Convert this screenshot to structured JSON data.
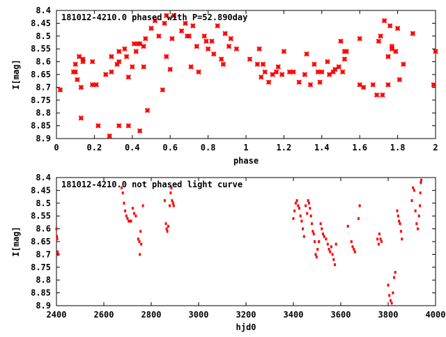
{
  "chart_data": [
    {
      "type": "scatter",
      "title": "181012-4210.0 phased with P=52.890day",
      "xlabel": "phase",
      "ylabel": "I[mag]",
      "xlim": [
        0,
        2
      ],
      "ylim": [
        8.4,
        8.9
      ],
      "y_inverted": true,
      "x_ticks": [
        0,
        0.2,
        0.4,
        0.6,
        0.8,
        1,
        1.2,
        1.4,
        1.6,
        1.8,
        2
      ],
      "x_tick_labels": [
        "0",
        "0.2",
        "0.4",
        "0.6",
        "0.8",
        "1",
        "1.2",
        "1.4",
        "1.6",
        "1.8",
        "2"
      ],
      "y_ticks": [
        8.4,
        8.45,
        8.5,
        8.55,
        8.6,
        8.65,
        8.7,
        8.75,
        8.8,
        8.85,
        8.9
      ],
      "y_tick_labels": [
        "8.4",
        "8.45",
        "8.5",
        "8.55",
        "8.6",
        "8.65",
        "8.7",
        "8.75",
        "8.8",
        "8.85",
        "8.9"
      ],
      "marker_color": "#ff0000",
      "marker": "cross",
      "points": [
        [
          0.02,
          8.71
        ],
        [
          0.09,
          8.64
        ],
        [
          0.1,
          8.64
        ],
        [
          0.1,
          8.61
        ],
        [
          0.11,
          8.67
        ],
        [
          0.12,
          8.58
        ],
        [
          0.13,
          8.7
        ],
        [
          0.13,
          8.82
        ],
        [
          0.14,
          8.6
        ],
        [
          0.14,
          8.59
        ],
        [
          0.19,
          8.69
        ],
        [
          0.19,
          8.6
        ],
        [
          0.21,
          8.69
        ],
        [
          0.22,
          8.85
        ],
        [
          0.26,
          8.65
        ],
        [
          0.28,
          8.89
        ],
        [
          0.29,
          8.64
        ],
        [
          0.29,
          8.58
        ],
        [
          0.32,
          8.61
        ],
        [
          0.33,
          8.6
        ],
        [
          0.33,
          8.56
        ],
        [
          0.33,
          8.85
        ],
        [
          0.36,
          8.55
        ],
        [
          0.37,
          8.58
        ],
        [
          0.38,
          8.66
        ],
        [
          0.38,
          8.85
        ],
        [
          0.4,
          8.62
        ],
        [
          0.41,
          8.53
        ],
        [
          0.42,
          8.56
        ],
        [
          0.43,
          8.53
        ],
        [
          0.44,
          8.53
        ],
        [
          0.44,
          8.87
        ],
        [
          0.46,
          8.54
        ],
        [
          0.46,
          8.62
        ],
        [
          0.47,
          8.51
        ],
        [
          0.48,
          8.79
        ],
        [
          0.5,
          8.47
        ],
        [
          0.52,
          8.44
        ],
        [
          0.54,
          8.5
        ],
        [
          0.56,
          8.71
        ],
        [
          0.57,
          8.45
        ],
        [
          0.58,
          8.42
        ],
        [
          0.58,
          8.58
        ],
        [
          0.6,
          8.63
        ],
        [
          0.61,
          8.51
        ],
        [
          0.62,
          8.42
        ],
        [
          0.66,
          8.48
        ],
        [
          0.68,
          8.45
        ],
        [
          0.69,
          8.5
        ],
        [
          0.7,
          8.5
        ],
        [
          0.71,
          8.62
        ],
        [
          0.72,
          8.46
        ],
        [
          0.74,
          8.54
        ],
        [
          0.75,
          8.64
        ],
        [
          0.78,
          8.5
        ],
        [
          0.79,
          8.52
        ],
        [
          0.8,
          8.55
        ],
        [
          0.82,
          8.52
        ],
        [
          0.83,
          8.57
        ],
        [
          0.85,
          8.46
        ],
        [
          0.87,
          8.59
        ],
        [
          0.88,
          8.61
        ],
        [
          0.89,
          8.49
        ],
        [
          0.91,
          8.54
        ],
        [
          0.92,
          8.51
        ],
        [
          0.95,
          8.55
        ],
        [
          1.02,
          8.59
        ],
        [
          1.06,
          8.61
        ],
        [
          1.07,
          8.55
        ],
        [
          1.08,
          8.66
        ],
        [
          1.09,
          8.61
        ],
        [
          1.1,
          8.64
        ],
        [
          1.12,
          8.68
        ],
        [
          1.14,
          8.65
        ],
        [
          1.16,
          8.64
        ],
        [
          1.17,
          8.62
        ],
        [
          1.19,
          8.65
        ],
        [
          1.2,
          8.56
        ],
        [
          1.23,
          8.64
        ],
        [
          1.25,
          8.64
        ],
        [
          1.28,
          8.68
        ],
        [
          1.31,
          8.65
        ],
        [
          1.32,
          8.57
        ],
        [
          1.34,
          8.69
        ],
        [
          1.36,
          8.61
        ],
        [
          1.38,
          8.64
        ],
        [
          1.39,
          8.68
        ],
        [
          1.4,
          8.64
        ],
        [
          1.43,
          8.6
        ],
        [
          1.44,
          8.65
        ],
        [
          1.46,
          8.64
        ],
        [
          1.47,
          8.63
        ],
        [
          1.49,
          8.62
        ],
        [
          1.5,
          8.52
        ],
        [
          1.51,
          8.64
        ],
        [
          1.52,
          8.59
        ],
        [
          1.52,
          8.56
        ],
        [
          1.53,
          8.56
        ],
        [
          1.6,
          8.51
        ],
        [
          1.6,
          8.69
        ],
        [
          1.62,
          8.7
        ],
        [
          1.67,
          8.69
        ],
        [
          1.69,
          8.73
        ],
        [
          1.7,
          8.52
        ],
        [
          1.71,
          8.5
        ],
        [
          1.72,
          8.73
        ],
        [
          1.73,
          8.44
        ],
        [
          1.75,
          8.69
        ],
        [
          1.75,
          8.58
        ],
        [
          1.76,
          8.46
        ],
        [
          1.77,
          8.55
        ],
        [
          1.77,
          8.54
        ],
        [
          1.79,
          8.56
        ],
        [
          1.8,
          8.47
        ],
        [
          1.81,
          8.67
        ],
        [
          1.83,
          8.61
        ],
        [
          1.88,
          8.49
        ],
        [
          1.99,
          8.69
        ],
        [
          2.0,
          8.56
        ]
      ]
    },
    {
      "type": "scatter",
      "title": "181012-4210.0 not phased light curve",
      "xlabel": "hjd0",
      "ylabel": "I[mag]",
      "xlim": [
        2400,
        4000
      ],
      "ylim": [
        8.4,
        8.9
      ],
      "y_inverted": true,
      "x_ticks": [
        2400,
        2600,
        2800,
        3000,
        3200,
        3400,
        3600,
        3800,
        4000
      ],
      "x_tick_labels": [
        "2400",
        "2600",
        "2800",
        "3000",
        "3200",
        "3400",
        "3600",
        "3800",
        "4000"
      ],
      "y_ticks": [
        8.4,
        8.45,
        8.5,
        8.55,
        8.6,
        8.65,
        8.7,
        8.75,
        8.8,
        8.85,
        8.9
      ],
      "y_tick_labels": [
        "8.4",
        "8.45",
        "8.5",
        "8.55",
        "8.6",
        "8.65",
        "8.7",
        "8.75",
        "8.8",
        "8.85",
        "8.9"
      ],
      "marker_color": "#ff0000",
      "marker": "dot",
      "points": [
        [
          2400,
          8.6
        ],
        [
          2402,
          8.63
        ],
        [
          2403,
          8.64
        ],
        [
          2405,
          8.69
        ],
        [
          2407,
          8.7
        ],
        [
          2675,
          8.44
        ],
        [
          2680,
          8.46
        ],
        [
          2685,
          8.5
        ],
        [
          2690,
          8.53
        ],
        [
          2695,
          8.55
        ],
        [
          2700,
          8.56
        ],
        [
          2705,
          8.57
        ],
        [
          2710,
          8.57
        ],
        [
          2715,
          8.57
        ],
        [
          2722,
          8.52
        ],
        [
          2728,
          8.54
        ],
        [
          2735,
          8.55
        ],
        [
          2745,
          8.64
        ],
        [
          2750,
          8.65
        ],
        [
          2752,
          8.7
        ],
        [
          2755,
          8.61
        ],
        [
          2758,
          8.66
        ],
        [
          2765,
          8.51
        ],
        [
          2857,
          8.49
        ],
        [
          2862,
          8.58
        ],
        [
          2865,
          8.6
        ],
        [
          2868,
          8.61
        ],
        [
          2872,
          8.59
        ],
        [
          2878,
          8.51
        ],
        [
          2882,
          8.46
        ],
        [
          2885,
          8.44
        ],
        [
          2888,
          8.49
        ],
        [
          2892,
          8.5
        ],
        [
          2895,
          8.51
        ],
        [
          3400,
          8.56
        ],
        [
          3405,
          8.53
        ],
        [
          3410,
          8.5
        ],
        [
          3415,
          8.49
        ],
        [
          3420,
          8.51
        ],
        [
          3425,
          8.52
        ],
        [
          3430,
          8.55
        ],
        [
          3435,
          8.57
        ],
        [
          3440,
          8.6
        ],
        [
          3445,
          8.63
        ],
        [
          3452,
          8.51
        ],
        [
          3458,
          8.54
        ],
        [
          3462,
          8.49
        ],
        [
          3466,
          8.5
        ],
        [
          3470,
          8.52
        ],
        [
          3474,
          8.55
        ],
        [
          3478,
          8.58
        ],
        [
          3482,
          8.61
        ],
        [
          3486,
          8.62
        ],
        [
          3490,
          8.65
        ],
        [
          3494,
          8.7
        ],
        [
          3498,
          8.71
        ],
        [
          3502,
          8.68
        ],
        [
          3508,
          8.65
        ],
        [
          3515,
          8.58
        ],
        [
          3520,
          8.6
        ],
        [
          3525,
          8.62
        ],
        [
          3530,
          8.63
        ],
        [
          3538,
          8.64
        ],
        [
          3545,
          8.66
        ],
        [
          3550,
          8.68
        ],
        [
          3555,
          8.69
        ],
        [
          3560,
          8.67
        ],
        [
          3565,
          8.7
        ],
        [
          3570,
          8.72
        ],
        [
          3575,
          8.74
        ],
        [
          3580,
          8.66
        ],
        [
          3630,
          8.59
        ],
        [
          3645,
          8.65
        ],
        [
          3650,
          8.67
        ],
        [
          3655,
          8.68
        ],
        [
          3660,
          8.69
        ],
        [
          3675,
          8.56
        ],
        [
          3680,
          8.51
        ],
        [
          3755,
          8.64
        ],
        [
          3760,
          8.66
        ],
        [
          3763,
          8.62
        ],
        [
          3768,
          8.64
        ],
        [
          3772,
          8.65
        ],
        [
          3800,
          8.82
        ],
        [
          3805,
          8.86
        ],
        [
          3810,
          8.88
        ],
        [
          3815,
          8.89
        ],
        [
          3820,
          8.85
        ],
        [
          3825,
          8.79
        ],
        [
          3830,
          8.77
        ],
        [
          3838,
          8.53
        ],
        [
          3842,
          8.55
        ],
        [
          3846,
          8.57
        ],
        [
          3850,
          8.58
        ],
        [
          3854,
          8.61
        ],
        [
          3858,
          8.64
        ],
        [
          3900,
          8.49
        ],
        [
          3905,
          8.44
        ],
        [
          3910,
          8.45
        ],
        [
          3915,
          8.53
        ],
        [
          3920,
          8.58
        ],
        [
          3925,
          8.6
        ],
        [
          3930,
          8.55
        ],
        [
          3934,
          8.51
        ],
        [
          3936,
          8.46
        ],
        [
          3938,
          8.42
        ],
        [
          3940,
          8.41
        ]
      ]
    }
  ]
}
